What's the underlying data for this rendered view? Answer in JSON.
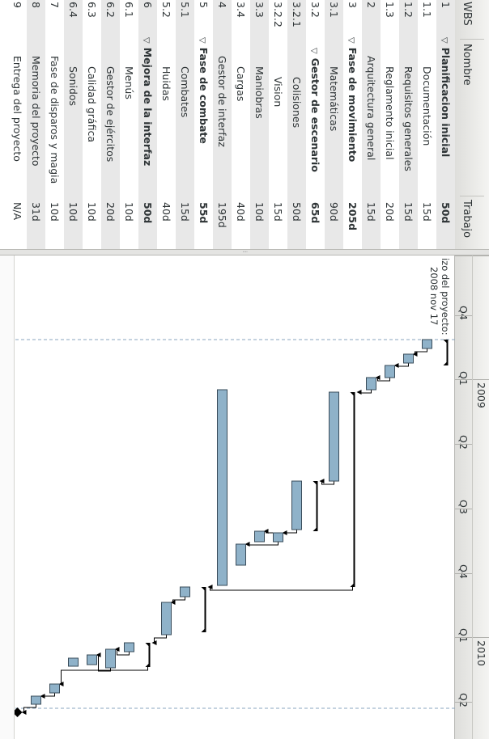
{
  "columns": {
    "wbs": "WBS",
    "name": "Nombre",
    "work": "Trabajo"
  },
  "tasks": [
    {
      "wbs": "1",
      "name": "Planificacion inicial",
      "work": "50d",
      "summary": true,
      "expanded": true,
      "indent": 0
    },
    {
      "wbs": "1.1",
      "name": "Documentación",
      "work": "15d",
      "summary": false,
      "indent": 2
    },
    {
      "wbs": "1.2",
      "name": "Requisitos generales",
      "work": "15d",
      "summary": false,
      "indent": 2
    },
    {
      "wbs": "1.3",
      "name": "Reglamento inicial",
      "work": "20d",
      "summary": false,
      "indent": 2
    },
    {
      "wbs": "2",
      "name": "Arquitectura general",
      "work": "15d",
      "summary": false,
      "indent": 1
    },
    {
      "wbs": "3",
      "name": "Fase de movimiento",
      "work": "205d",
      "summary": true,
      "expanded": true,
      "indent": 0
    },
    {
      "wbs": "3.1",
      "name": "Matemáticas",
      "work": "90d",
      "summary": false,
      "indent": 2
    },
    {
      "wbs": "3.2",
      "name": "Gestor de escenario",
      "work": "65d",
      "summary": true,
      "expanded": true,
      "indent": 1
    },
    {
      "wbs": "3.2.1",
      "name": "Colisiones",
      "work": "50d",
      "summary": false,
      "indent": 3
    },
    {
      "wbs": "3.2.2",
      "name": "Vision",
      "work": "15d",
      "summary": false,
      "indent": 3
    },
    {
      "wbs": "3.3",
      "name": "Maniobras",
      "work": "10d",
      "summary": false,
      "indent": 2
    },
    {
      "wbs": "3.4",
      "name": "Cargas",
      "work": "40d",
      "summary": false,
      "indent": 2
    },
    {
      "wbs": "4",
      "name": "Gestor de interfaz",
      "work": "195d",
      "summary": false,
      "indent": 1
    },
    {
      "wbs": "5",
      "name": "Fase de combate",
      "work": "55d",
      "summary": true,
      "expanded": true,
      "indent": 0
    },
    {
      "wbs": "5.1",
      "name": "Combates",
      "work": "15d",
      "summary": false,
      "indent": 2
    },
    {
      "wbs": "5.2",
      "name": "Huidas",
      "work": "40d",
      "summary": false,
      "indent": 2
    },
    {
      "wbs": "6",
      "name": "Mejora de la interfaz",
      "work": "50d",
      "summary": true,
      "expanded": true,
      "indent": 0
    },
    {
      "wbs": "6.1",
      "name": "Menús",
      "work": "10d",
      "summary": false,
      "indent": 2
    },
    {
      "wbs": "6.2",
      "name": "Gestor de ejércitos",
      "work": "20d",
      "summary": false,
      "indent": 2
    },
    {
      "wbs": "6.3",
      "name": "Calidad gráfica",
      "work": "10d",
      "summary": false,
      "indent": 2
    },
    {
      "wbs": "6.4",
      "name": "Sonidos",
      "work": "10d",
      "summary": false,
      "indent": 2
    },
    {
      "wbs": "7",
      "name": "Fase de disparos y magia",
      "work": "10d",
      "summary": false,
      "indent": 1
    },
    {
      "wbs": "8",
      "name": "Memoria del proyecto",
      "work": "31d",
      "summary": false,
      "indent": 1
    },
    {
      "wbs": "9",
      "name": "Entrega del proyecto",
      "work": "N/A",
      "summary": false,
      "indent": 1
    }
  ],
  "timeline": {
    "years": [
      "2009",
      "2010"
    ],
    "quarters": [
      "Q4",
      "Q1",
      "Q2",
      "Q3",
      "Q4",
      "Q1",
      "Q2"
    ],
    "project_start_label": "Comienzo del proyecto:",
    "project_start_label_visible": "izo del proyecto:",
    "project_start_date": "2008 nov 17"
  },
  "colors": {
    "bar": "#8fb2c9",
    "bar_border": "#3a4c5a",
    "summary": "#000000",
    "row_alt": "#e8e8e8",
    "guide": "#8aa6bf"
  }
}
